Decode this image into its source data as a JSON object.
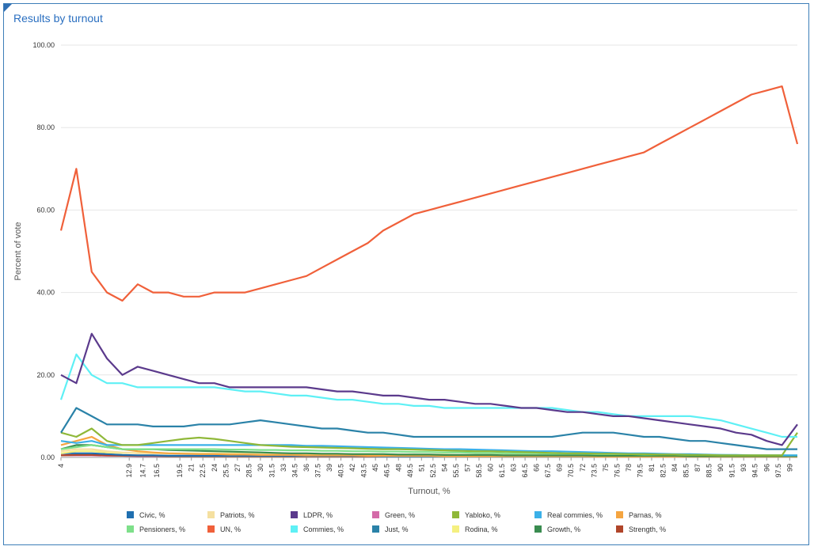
{
  "panel": {
    "title": "Results by turnout"
  },
  "chart_data": {
    "type": "line",
    "title": "Results by turnout",
    "xlabel": "Turnout, %",
    "ylabel": "Percent of vote",
    "xlim": [
      4,
      100
    ],
    "ylim": [
      0,
      100
    ],
    "yticks": [
      0,
      20,
      40,
      60,
      80,
      100
    ],
    "ytick_labels": [
      "0.00",
      "20.00",
      "40.00",
      "60.00",
      "80.00",
      "100.00"
    ],
    "xtick_labels": [
      "4",
      "12.9",
      "14.7",
      "16.5",
      "19.5",
      "21",
      "22.5",
      "24",
      "25.5",
      "27",
      "28.5",
      "30",
      "31.5",
      "33",
      "34.5",
      "36",
      "37.5",
      "39",
      "40.5",
      "42",
      "43.5",
      "45",
      "46.5",
      "48",
      "49.5",
      "51",
      "52.5",
      "54",
      "55.5",
      "57",
      "58.5",
      "60",
      "61.5",
      "63",
      "64.5",
      "66",
      "67.5",
      "69",
      "70.5",
      "72",
      "73.5",
      "75",
      "76.5",
      "78",
      "79.5",
      "81",
      "82.5",
      "84",
      "85.5",
      "87",
      "88.5",
      "90",
      "91.5",
      "93",
      "94.5",
      "96",
      "97.5",
      "99"
    ],
    "xtick_values": [
      4,
      12.9,
      14.7,
      16.5,
      19.5,
      21,
      22.5,
      24,
      25.5,
      27,
      28.5,
      30,
      31.5,
      33,
      34.5,
      36,
      37.5,
      39,
      40.5,
      42,
      43.5,
      45,
      46.5,
      48,
      49.5,
      51,
      52.5,
      54,
      55.5,
      57,
      58.5,
      60,
      61.5,
      63,
      64.5,
      66,
      67.5,
      69,
      70.5,
      72,
      73.5,
      75,
      76.5,
      78,
      79.5,
      81,
      82.5,
      84,
      85.5,
      87,
      88.5,
      90,
      91.5,
      93,
      94.5,
      96,
      97.5,
      99
    ],
    "x": [
      4,
      6,
      8,
      10,
      12,
      14,
      16,
      18,
      20,
      22,
      24,
      26,
      28,
      30,
      32,
      34,
      36,
      38,
      40,
      42,
      44,
      46,
      48,
      50,
      52,
      54,
      56,
      58,
      60,
      62,
      64,
      66,
      68,
      70,
      72,
      74,
      76,
      78,
      80,
      82,
      84,
      86,
      88,
      90,
      92,
      94,
      96,
      98,
      100
    ],
    "legend_position": "bottom",
    "grid": true,
    "series": [
      {
        "name": "Civic, %",
        "color": "#1f6fb0",
        "values": [
          1,
          1,
          1,
          0.8,
          0.6,
          0.5,
          0.5,
          0.4,
          0.4,
          0.4,
          0.4,
          0.4,
          0.4,
          0.4,
          0.4,
          0.4,
          0.4,
          0.4,
          0.4,
          0.4,
          0.4,
          0.3,
          0.3,
          0.3,
          0.3,
          0.3,
          0.3,
          0.3,
          0.3,
          0.3,
          0.3,
          0.3,
          0.3,
          0.3,
          0.3,
          0.3,
          0.3,
          0.3,
          0.3,
          0.3,
          0.3,
          0.3,
          0.3,
          0.3,
          0.3,
          0.3,
          0.3,
          0.3,
          0.3
        ]
      },
      {
        "name": "Patriots, %",
        "color": "#f5e0a0",
        "values": [
          1.5,
          2,
          2,
          1.5,
          1.2,
          1,
          1,
          0.9,
          0.9,
          0.9,
          0.9,
          0.9,
          0.8,
          0.8,
          0.8,
          0.8,
          0.8,
          0.8,
          0.8,
          0.7,
          0.7,
          0.7,
          0.7,
          0.7,
          0.6,
          0.6,
          0.6,
          0.6,
          0.6,
          0.6,
          0.5,
          0.5,
          0.5,
          0.5,
          0.5,
          0.5,
          0.5,
          0.4,
          0.4,
          0.4,
          0.4,
          0.4,
          0.4,
          0.4,
          0.3,
          0.3,
          0.3,
          0.3,
          0.3
        ]
      },
      {
        "name": "LDPR, %",
        "color": "#5b3a8c",
        "values": [
          20,
          18,
          30,
          24,
          20,
          22,
          21,
          20,
          19,
          18,
          18,
          17,
          17,
          17,
          17,
          17,
          17,
          16.5,
          16,
          16,
          15.5,
          15,
          15,
          14.5,
          14,
          14,
          13.5,
          13,
          13,
          12.5,
          12,
          12,
          11.5,
          11,
          11,
          10.5,
          10,
          10,
          9.5,
          9,
          8.5,
          8,
          7.5,
          7,
          6,
          5.5,
          4,
          3,
          8
        ]
      },
      {
        "name": "Green, %",
        "color": "#d46aa8",
        "values": [
          0.5,
          0.5,
          0.5,
          0.4,
          0.4,
          0.3,
          0.3,
          0.3,
          0.3,
          0.3,
          0.3,
          0.3,
          0.3,
          0.3,
          0.3,
          0.3,
          0.3,
          0.3,
          0.3,
          0.3,
          0.3,
          0.3,
          0.3,
          0.3,
          0.3,
          0.3,
          0.3,
          0.3,
          0.3,
          0.3,
          0.3,
          0.3,
          0.3,
          0.3,
          0.3,
          0.3,
          0.3,
          0.3,
          0.3,
          0.3,
          0.3,
          0.3,
          0.3,
          0.3,
          0.3,
          0.3,
          0.3,
          0.3,
          0.3
        ]
      },
      {
        "name": "Yabloko, %",
        "color": "#8fb838",
        "values": [
          6,
          5,
          7,
          4,
          3,
          3,
          3.5,
          4,
          4.5,
          4.8,
          4.5,
          4,
          3.5,
          3,
          2.8,
          2.6,
          2.5,
          2.4,
          2.3,
          2.2,
          2.1,
          2,
          2,
          1.9,
          1.8,
          1.7,
          1.6,
          1.5,
          1.5,
          1.4,
          1.3,
          1.2,
          1.1,
          1,
          1,
          0.9,
          0.9,
          0.8,
          0.8,
          0.7,
          0.7,
          0.6,
          0.6,
          0.5,
          0.5,
          0.5,
          0.5,
          0.5,
          6
        ]
      },
      {
        "name": "Real commies, %",
        "color": "#3bb0e8",
        "values": [
          4,
          3.5,
          4,
          3,
          3,
          3,
          3,
          3,
          3,
          3,
          3,
          3,
          3,
          3,
          3,
          3,
          2.8,
          2.8,
          2.7,
          2.6,
          2.5,
          2.4,
          2.3,
          2.2,
          2.1,
          2,
          2,
          1.9,
          1.8,
          1.7,
          1.6,
          1.5,
          1.5,
          1.4,
          1.3,
          1.2,
          1.1,
          1,
          1,
          0.9,
          0.8,
          0.8,
          0.7,
          0.6,
          0.6,
          0.5,
          0.5,
          0.5,
          0.5
        ]
      },
      {
        "name": "Parnas, %",
        "color": "#f5a540",
        "values": [
          3,
          4,
          5,
          3,
          2,
          1.5,
          1.2,
          1,
          0.9,
          0.8,
          0.8,
          0.7,
          0.7,
          0.6,
          0.6,
          0.6,
          0.5,
          0.5,
          0.5,
          0.5,
          0.4,
          0.4,
          0.4,
          0.4,
          0.4,
          0.3,
          0.3,
          0.3,
          0.3,
          0.3,
          0.3,
          0.3,
          0.3,
          0.3,
          0.3,
          0.2,
          0.2,
          0.2,
          0.2,
          0.2,
          0.2,
          0.2,
          0.2,
          0.2,
          0.2,
          0.2,
          0.2,
          0.2,
          0.2
        ]
      },
      {
        "name": "Pensioners, %",
        "color": "#7ee08a",
        "values": [
          2,
          2.5,
          3,
          2.5,
          2,
          2,
          2,
          2,
          2,
          2,
          2,
          1.9,
          1.9,
          1.8,
          1.8,
          1.7,
          1.7,
          1.6,
          1.6,
          1.5,
          1.5,
          1.4,
          1.4,
          1.3,
          1.3,
          1.2,
          1.2,
          1.1,
          1.1,
          1,
          1,
          1,
          0.9,
          0.9,
          0.9,
          0.8,
          0.8,
          0.8,
          0.7,
          0.7,
          0.7,
          0.6,
          0.6,
          0.6,
          0.5,
          0.5,
          0.5,
          0.5,
          0.5
        ]
      },
      {
        "name": "UN, %",
        "color": "#f0603a",
        "values": [
          55,
          70,
          45,
          40,
          38,
          42,
          40,
          40,
          39,
          39,
          40,
          40,
          40,
          41,
          42,
          43,
          44,
          46,
          48,
          50,
          52,
          55,
          57,
          59,
          60,
          61,
          62,
          63,
          64,
          65,
          66,
          67,
          68,
          69,
          70,
          71,
          72,
          73,
          74,
          76,
          78,
          80,
          82,
          84,
          86,
          88,
          89,
          90,
          76
        ]
      },
      {
        "name": "Commies, %",
        "color": "#5ef0f5",
        "values": [
          14,
          25,
          20,
          18,
          18,
          17,
          17,
          17,
          17,
          17,
          17,
          16.5,
          16,
          16,
          15.5,
          15,
          15,
          14.5,
          14,
          14,
          13.5,
          13,
          13,
          12.5,
          12.5,
          12,
          12,
          12,
          12,
          12,
          12,
          12,
          12,
          11.5,
          11,
          11,
          10.5,
          10,
          10,
          10,
          10,
          10,
          9.5,
          9,
          8,
          7,
          6,
          5,
          5
        ]
      },
      {
        "name": "Just, %",
        "color": "#2a82a8",
        "values": [
          6,
          12,
          10,
          8,
          8,
          8,
          7.5,
          7.5,
          7.5,
          8,
          8,
          8,
          8.5,
          9,
          8.5,
          8,
          7.5,
          7,
          7,
          6.5,
          6,
          6,
          5.5,
          5,
          5,
          5,
          5,
          5,
          5,
          5,
          5,
          5,
          5,
          5.5,
          6,
          6,
          6,
          5.5,
          5,
          5,
          4.5,
          4,
          4,
          3.5,
          3,
          2.5,
          2,
          2,
          2
        ]
      },
      {
        "name": "Rodina, %",
        "color": "#f5f080",
        "values": [
          1,
          1.5,
          1.5,
          1.2,
          1.1,
          1.1,
          1,
          1,
          1,
          1,
          1,
          1,
          0.9,
          0.9,
          0.9,
          0.9,
          0.8,
          0.8,
          0.8,
          0.8,
          0.8,
          0.7,
          0.7,
          0.7,
          0.7,
          0.7,
          0.6,
          0.6,
          0.6,
          0.6,
          0.6,
          0.5,
          0.5,
          0.5,
          0.5,
          0.5,
          0.5,
          0.4,
          0.4,
          0.4,
          0.4,
          0.4,
          0.4,
          0.4,
          0.3,
          0.3,
          0.3,
          0.3,
          0.3
        ]
      },
      {
        "name": "Growth, %",
        "color": "#3a8c50",
        "values": [
          2,
          3,
          3,
          2.5,
          2,
          2,
          2,
          1.8,
          1.7,
          1.6,
          1.5,
          1.4,
          1.3,
          1.2,
          1.1,
          1,
          1,
          0.9,
          0.9,
          0.8,
          0.8,
          0.8,
          0.7,
          0.7,
          0.7,
          0.6,
          0.6,
          0.6,
          0.6,
          0.5,
          0.5,
          0.5,
          0.5,
          0.5,
          0.5,
          0.4,
          0.4,
          0.4,
          0.4,
          0.4,
          0.4,
          0.3,
          0.3,
          0.3,
          0.3,
          0.3,
          0.3,
          0.3,
          0.3
        ]
      },
      {
        "name": "Strength, %",
        "color": "#b0452a",
        "values": [
          0.5,
          0.6,
          0.6,
          0.5,
          0.4,
          0.4,
          0.4,
          0.3,
          0.3,
          0.3,
          0.3,
          0.3,
          0.3,
          0.3,
          0.3,
          0.3,
          0.3,
          0.3,
          0.3,
          0.3,
          0.3,
          0.3,
          0.3,
          0.3,
          0.3,
          0.3,
          0.3,
          0.3,
          0.3,
          0.3,
          0.3,
          0.3,
          0.3,
          0.3,
          0.3,
          0.3,
          0.3,
          0.3,
          0.3,
          0.3,
          0.3,
          0.3,
          0.3,
          0.3,
          0.3,
          0.3,
          0.3,
          0.3,
          0.3
        ]
      }
    ]
  }
}
